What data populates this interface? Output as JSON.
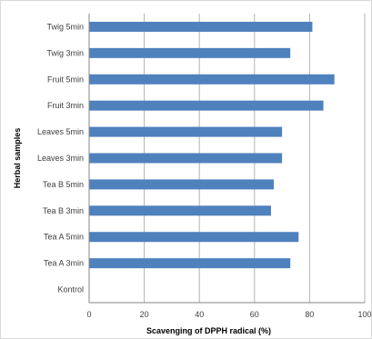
{
  "chart_data": {
    "type": "bar",
    "orientation": "horizontal",
    "categories": [
      "Kontrol",
      "Tea A 3min",
      "Tea A 5min",
      "Tea B 3min",
      "Tea B 5min",
      "Leaves 3min",
      "Leaves 5min",
      "Fruit  3min",
      "Fruit 5min",
      "Twig 3min",
      "Twig 5min"
    ],
    "values": [
      0,
      73,
      76,
      66,
      67,
      70,
      70,
      85,
      89,
      73,
      81
    ],
    "xlabel": "Scavenging of DPPH radical  (%)",
    "ylabel": "Herbal samples",
    "xlim": [
      0,
      100
    ],
    "xticks": [
      "0",
      "20",
      "40",
      "60",
      "80",
      "100"
    ],
    "grid": true,
    "colors": {
      "bar": "#4f81bd",
      "grid": "#b3b3b3",
      "axis": "#868686"
    }
  }
}
